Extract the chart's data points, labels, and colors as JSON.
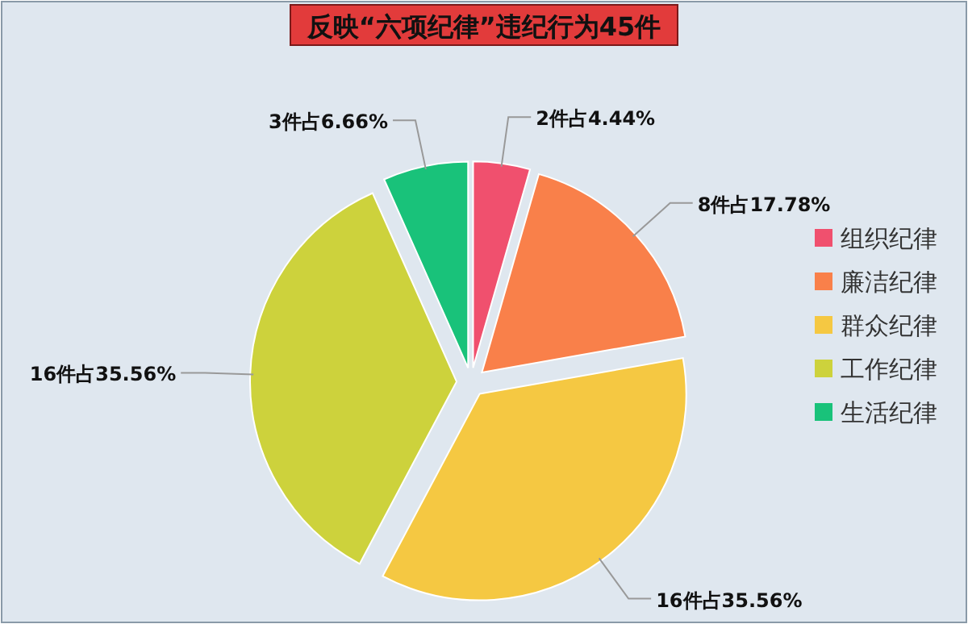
{
  "chart_data": {
    "type": "pie",
    "title": "反映“六项纪律”违纪行为45件",
    "categories": [
      "组织纪律",
      "廉洁纪律",
      "群众纪律",
      "工作纪律",
      "生活纪律"
    ],
    "values": [
      2,
      8,
      16,
      16,
      3
    ],
    "value_labels": [
      "2件占4.44%",
      "8件占17.78%",
      "16件占35.56%",
      "16件占35.56%",
      "3件占6.66%"
    ],
    "colors": [
      "#f0506e",
      "#f9804a",
      "#f5c842",
      "#cdd23c",
      "#19c27a"
    ],
    "legend": "right"
  }
}
